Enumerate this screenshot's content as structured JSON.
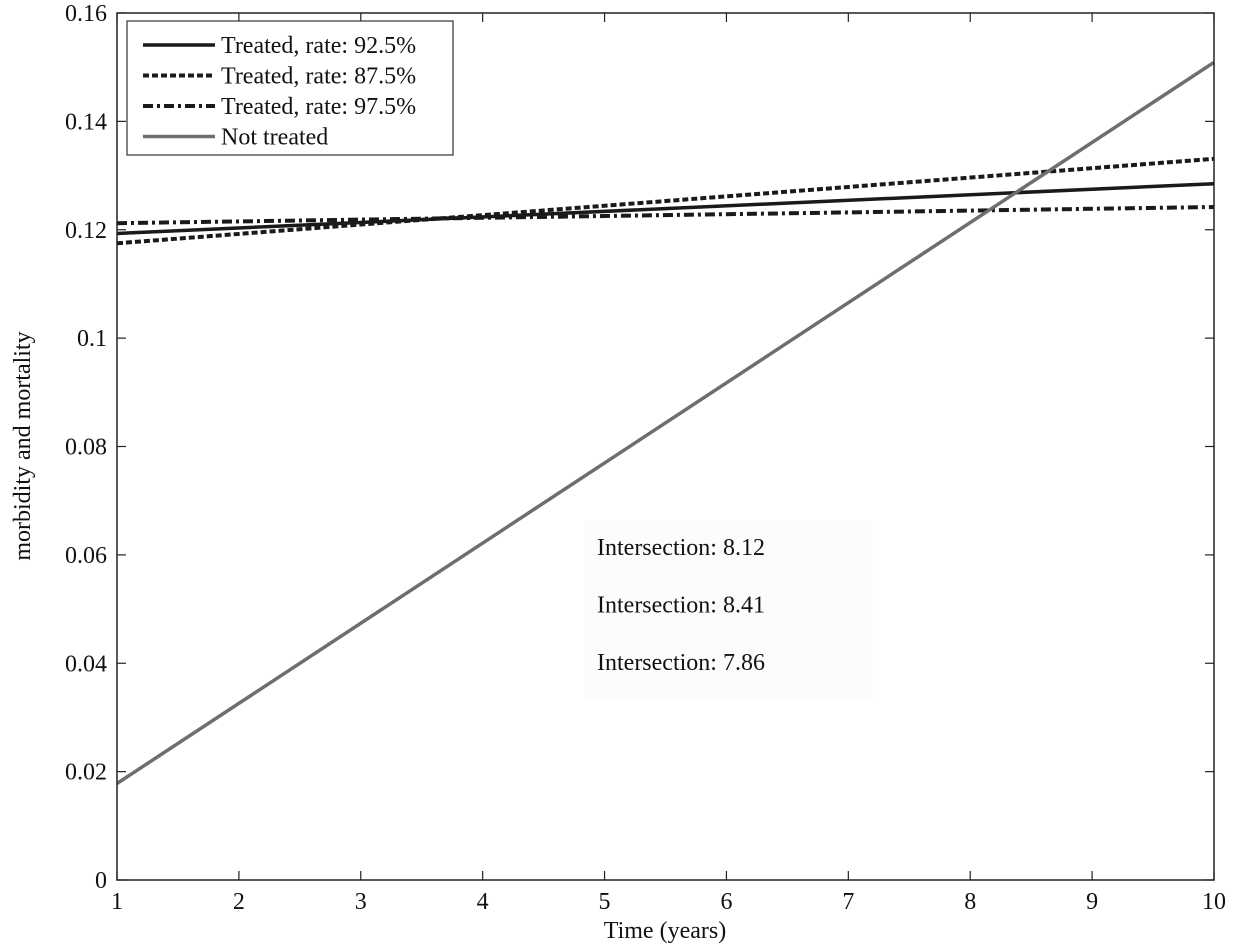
{
  "chart_data": {
    "type": "line",
    "title": "",
    "xlabel": "Time (years)",
    "ylabel": "morbidity and mortality",
    "xlim": [
      1,
      10
    ],
    "ylim": [
      0,
      0.16
    ],
    "xticks": [
      1,
      2,
      3,
      4,
      5,
      6,
      7,
      8,
      9,
      10
    ],
    "xtick_labels": [
      "1",
      "2",
      "3",
      "4",
      "5",
      "6",
      "7",
      "8",
      "9",
      "10"
    ],
    "yticks": [
      0,
      0.02,
      0.04,
      0.06,
      0.08,
      0.1,
      0.12,
      0.14,
      0.16
    ],
    "ytick_labels": [
      "0",
      "0.02",
      "0.04",
      "0.06",
      "0.08",
      "0.1",
      "0.12",
      "0.14",
      "0.16"
    ],
    "grid": false,
    "legend_position": "top-left",
    "series": [
      {
        "name": "Treated, rate: 92.5%",
        "style": "solid",
        "color": "#1a1a1a",
        "x": [
          1,
          10
        ],
        "y": [
          0.1193,
          0.1285
        ]
      },
      {
        "name": "Treated, rate: 87.5%",
        "style": "dashed",
        "color": "#1a1a1a",
        "x": [
          1,
          10
        ],
        "y": [
          0.1175,
          0.1331
        ]
      },
      {
        "name": "Treated, rate: 97.5%",
        "style": "dashdot",
        "color": "#1a1a1a",
        "x": [
          1,
          10
        ],
        "y": [
          0.1212,
          0.1242
        ]
      },
      {
        "name": "Not treated",
        "style": "solid",
        "color": "#6e6e6e",
        "x": [
          1,
          10
        ],
        "y": [
          0.0178,
          0.1509
        ]
      }
    ],
    "annotations": [
      {
        "text": "Intersection: 8.12"
      },
      {
        "text": "Intersection: 8.41"
      },
      {
        "text": "Intersection: 7.86"
      }
    ]
  }
}
